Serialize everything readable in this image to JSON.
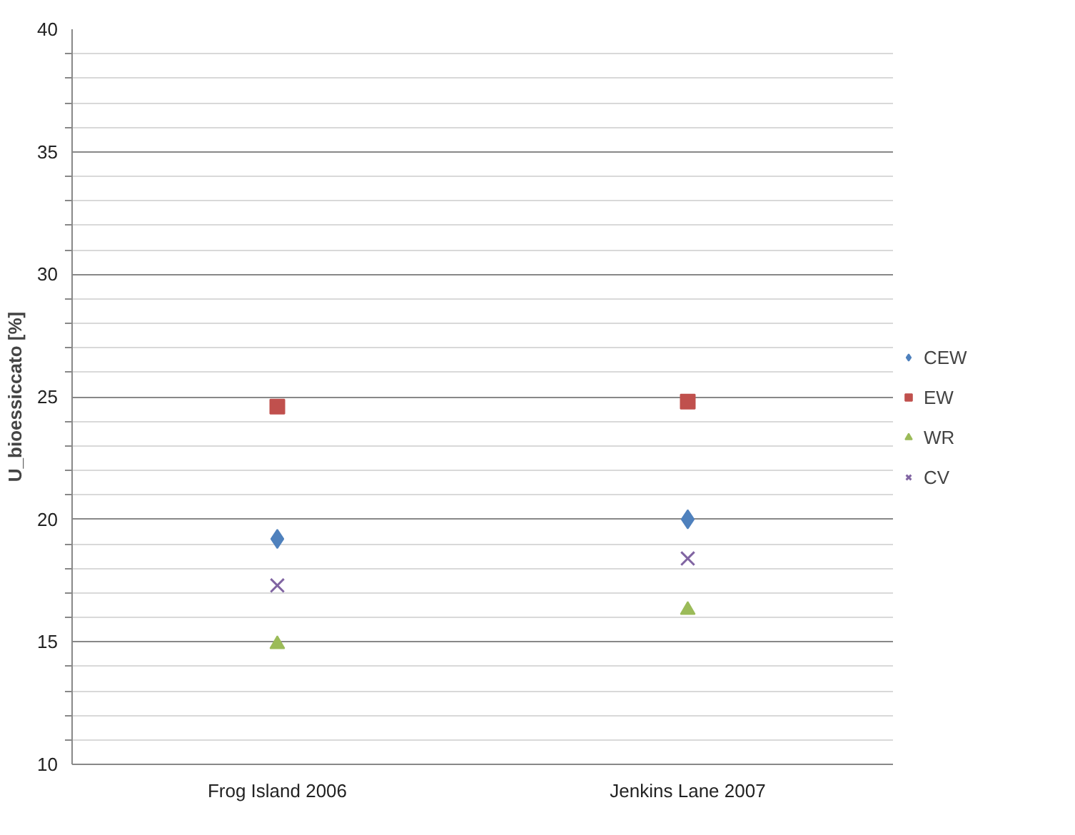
{
  "chart_data": {
    "type": "scatter",
    "ylabel": "U_bioessiccato [%]",
    "categories": [
      "Frog Island 2006",
      "Jenkins Lane 2007"
    ],
    "series": [
      {
        "name": "CEW",
        "color": "#4f81bd",
        "marker": "diamond",
        "values": [
          19.2,
          20.0
        ]
      },
      {
        "name": "EW",
        "color": "#c0504d",
        "marker": "square",
        "values": [
          24.6,
          24.8
        ]
      },
      {
        "name": "WR",
        "color": "#9bbb59",
        "marker": "triangle",
        "values": [
          14.9,
          16.3
        ]
      },
      {
        "name": "CV",
        "color": "#8064a2",
        "marker": "cross",
        "values": [
          17.3,
          18.4
        ]
      }
    ],
    "ylim": [
      10,
      40
    ],
    "yticks": [
      10,
      {
        "value": 11,
        "label": null
      },
      {
        "value": 12,
        "label": null
      },
      {
        "value": 13,
        "label": null
      },
      {
        "value": 14,
        "label": null
      },
      15,
      {
        "value": 16,
        "label": null
      },
      {
        "value": 17,
        "label": null
      },
      {
        "value": 18,
        "label": null
      },
      {
        "value": 19,
        "label": null
      },
      20,
      {
        "value": 21,
        "label": null
      },
      {
        "value": 22,
        "label": null
      },
      {
        "value": 23,
        "label": null
      },
      {
        "value": 24,
        "label": null
      },
      25,
      {
        "value": 26,
        "label": null
      },
      {
        "value": 27,
        "label": null
      },
      {
        "value": 28,
        "label": null
      },
      {
        "value": 29,
        "label": null
      },
      30,
      {
        "value": 31,
        "label": null
      },
      {
        "value": 32,
        "label": null
      },
      {
        "value": 33,
        "label": null
      },
      {
        "value": 34,
        "label": null
      },
      35,
      {
        "value": 36,
        "label": null
      },
      {
        "value": 37,
        "label": null
      },
      {
        "value": 38,
        "label": null
      },
      {
        "value": 39,
        "label": null
      },
      40
    ],
    "grid": "y",
    "legend": "right"
  }
}
